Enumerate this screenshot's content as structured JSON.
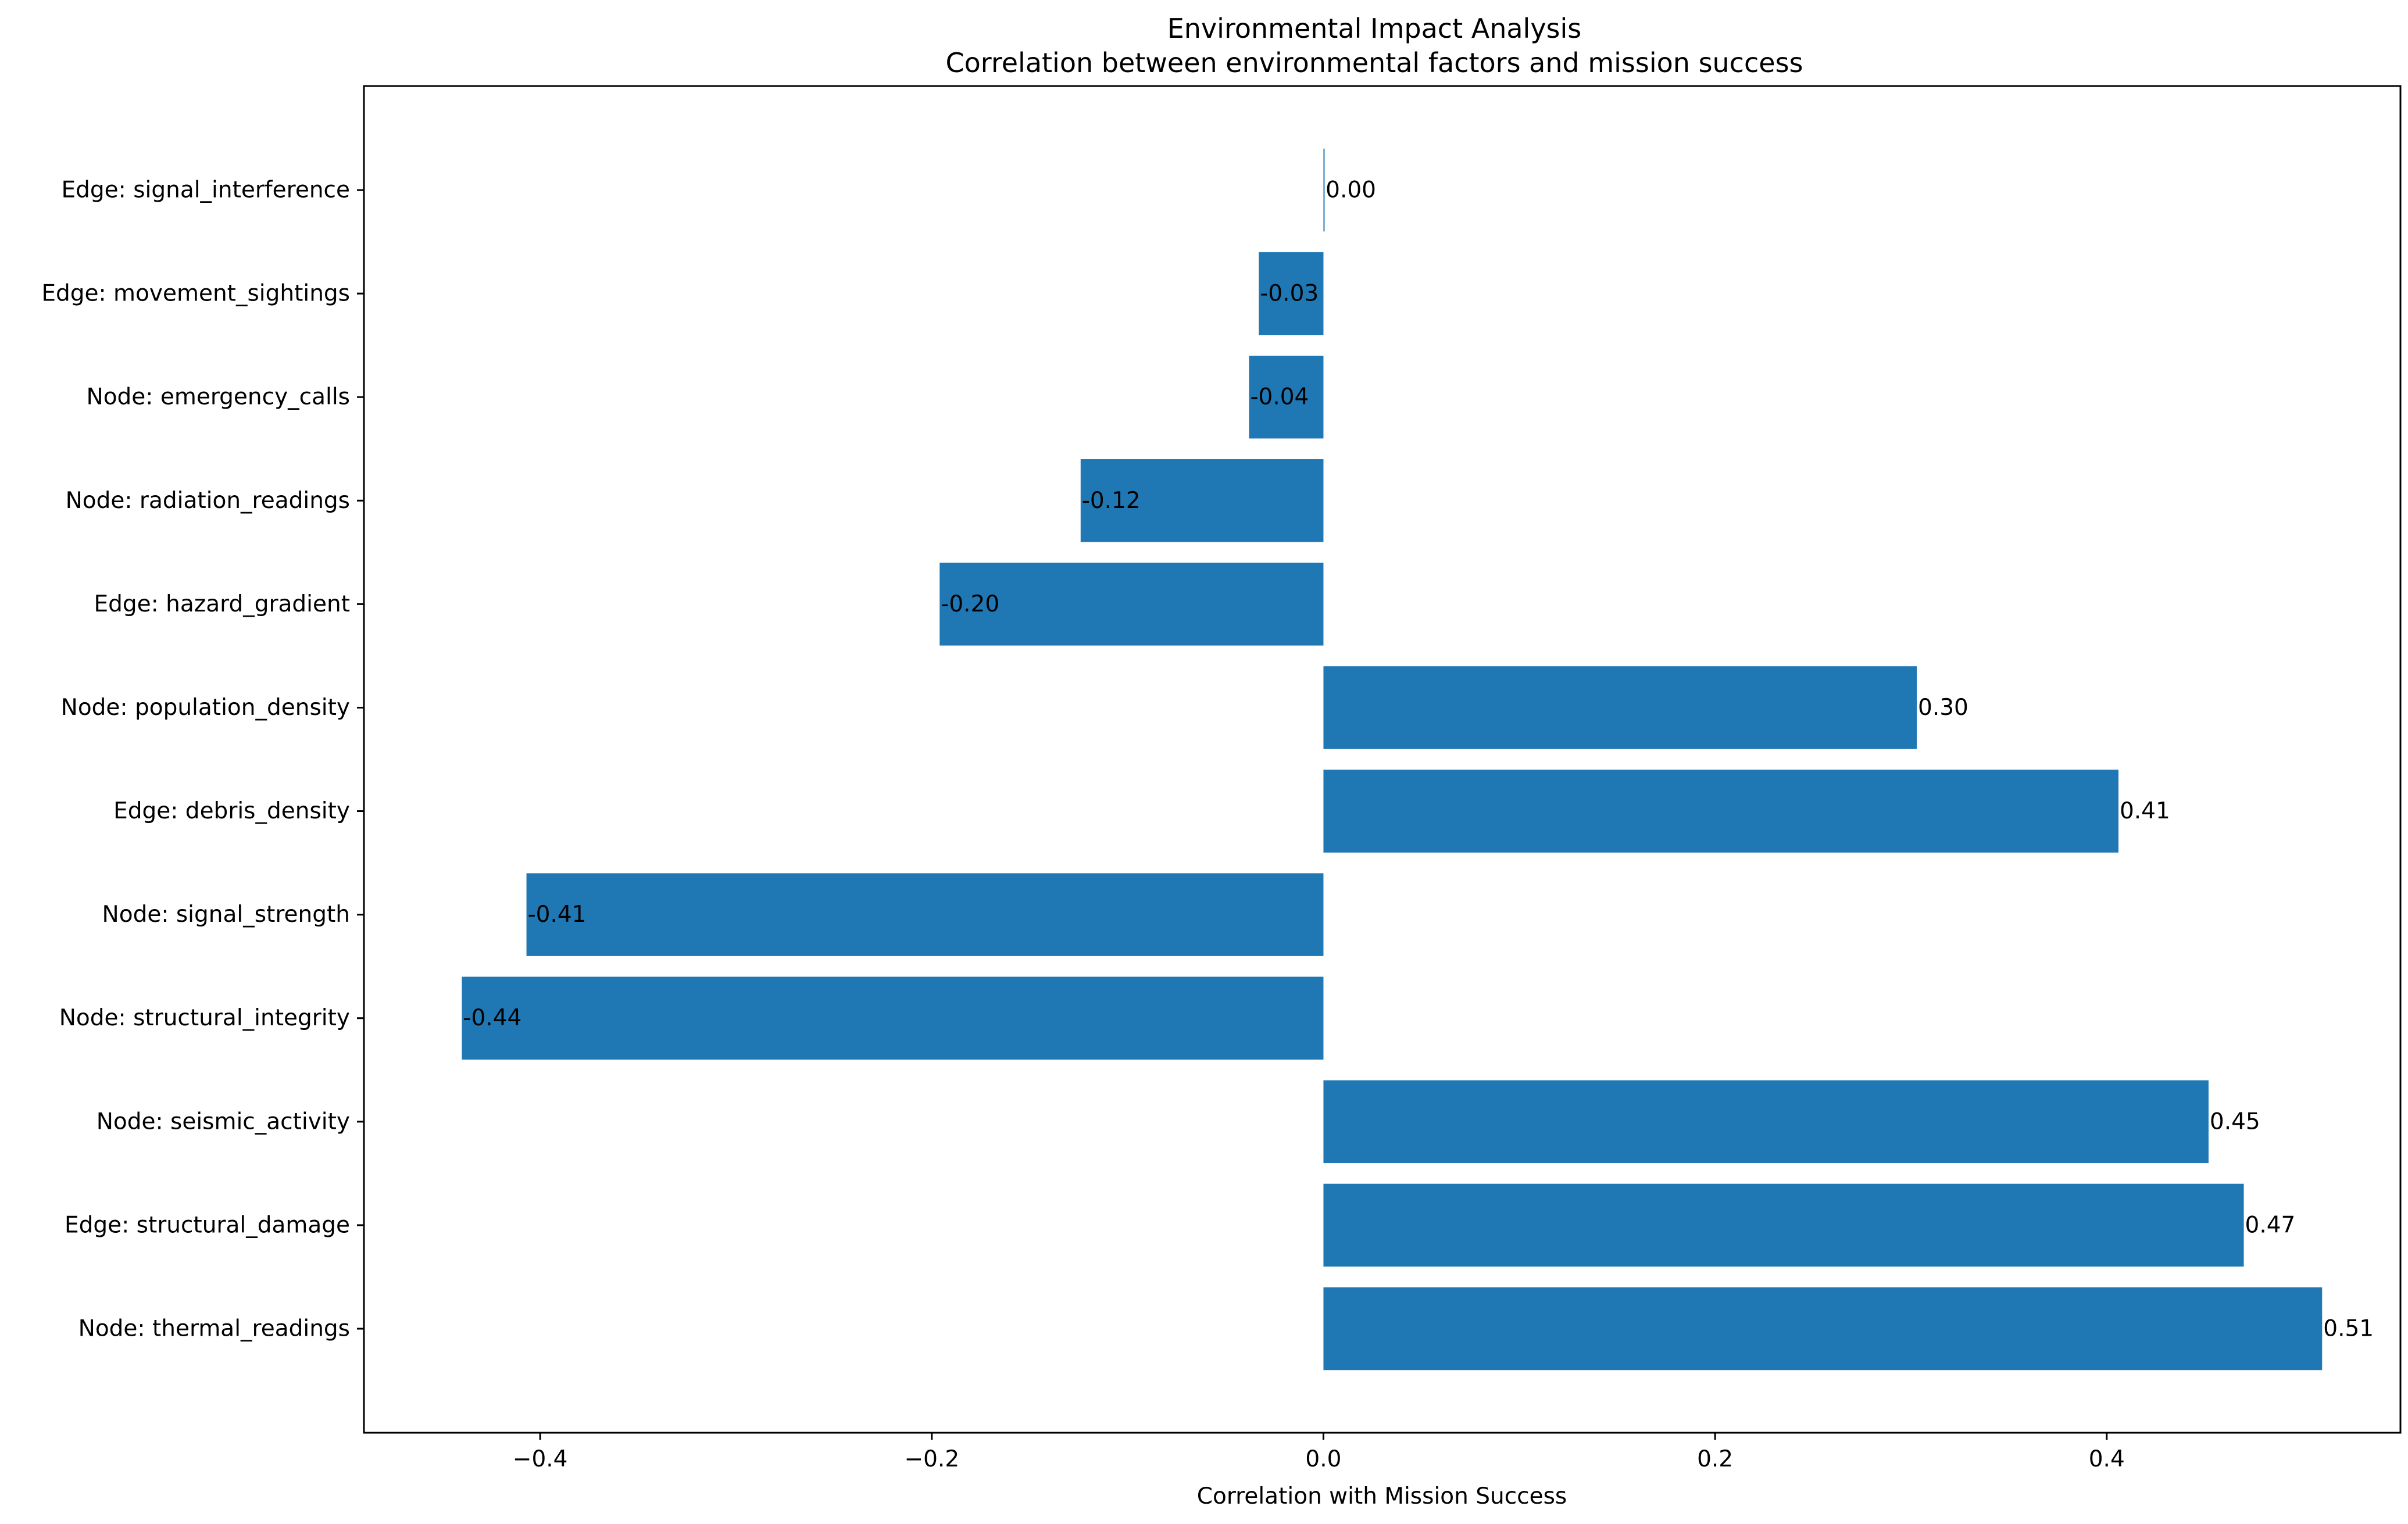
{
  "chart_data": {
    "type": "bar",
    "orientation": "horizontal",
    "title": "Environmental Impact Analysis",
    "subtitle": "Correlation between environmental factors and mission success",
    "xlabel": "Correlation with Mission Success",
    "ylabel": "",
    "xlim": [
      -0.49,
      0.55
    ],
    "xticks": [
      -0.4,
      -0.2,
      0.0,
      0.2,
      0.4
    ],
    "xtick_labels": [
      "−0.4",
      "−0.2",
      "0.0",
      "0.2",
      "0.4"
    ],
    "grid": false,
    "legend": "none",
    "bar_color": "#1f77b4",
    "categories": [
      "Node: thermal_readings",
      "Edge: structural_damage",
      "Node: seismic_activity",
      "Node: structural_integrity",
      "Node: signal_strength",
      "Edge: debris_density",
      "Node: population_density",
      "Edge: hazard_gradient",
      "Node: radiation_readings",
      "Node: emergency_calls",
      "Edge: movement_sightings",
      "Edge: signal_interference"
    ],
    "values": [
      0.51,
      0.47,
      0.452,
      -0.44,
      -0.407,
      0.406,
      0.303,
      -0.196,
      -0.124,
      -0.038,
      -0.033,
      0.0005
    ],
    "data_labels": [
      "0.51",
      "0.47",
      "0.45",
      "-0.44",
      "-0.41",
      "0.41",
      "0.30",
      "-0.20",
      "-0.12",
      "-0.04",
      "-0.03",
      "0.00"
    ]
  }
}
